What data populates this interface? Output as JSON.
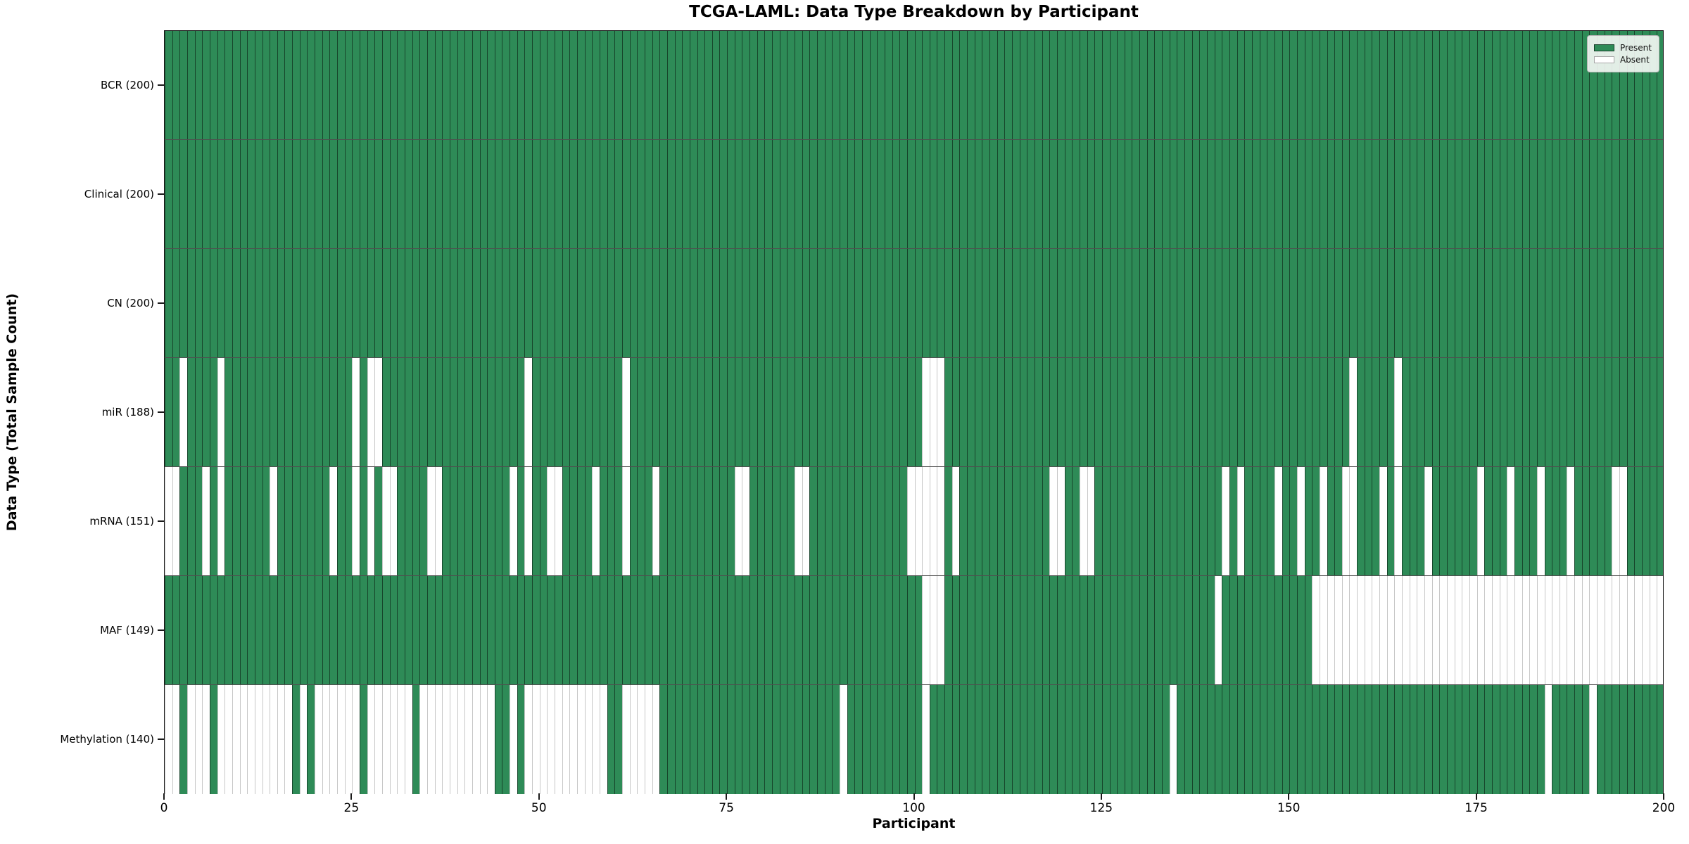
{
  "figure": {
    "title": "TCGA-LAML: Data Type Breakdown by Participant",
    "xlabel": "Participant",
    "ylabel": "Data Type (Total Sample Count)"
  },
  "legend": {
    "present_label": "Present",
    "absent_label": "Absent"
  },
  "colors": {
    "present": "#2e8b57",
    "absent": "#ffffff",
    "frame": "#1a1a1a"
  },
  "chart_data": {
    "type": "heatmap",
    "title": "TCGA-LAML: Data Type Breakdown by Participant",
    "xlabel": "Participant",
    "ylabel": "Data Type (Total Sample Count)",
    "legend_position": "upper right",
    "legend_entries": [
      "Present",
      "Absent"
    ],
    "x_range": [
      0,
      200
    ],
    "n_columns": 200,
    "x_ticks": [
      0,
      25,
      50,
      75,
      100,
      125,
      150,
      175,
      200
    ],
    "categories": [
      "BCR",
      "Clinical",
      "CN",
      "miR",
      "mRNA",
      "MAF",
      "Methylation"
    ],
    "rows": [
      {
        "name": "BCR",
        "label": "BCR (200)",
        "present_count": 200,
        "absent_columns": []
      },
      {
        "name": "Clinical",
        "label": "Clinical (200)",
        "present_count": 200,
        "absent_columns": []
      },
      {
        "name": "CN",
        "label": "CN (200)",
        "present_count": 200,
        "absent_columns": []
      },
      {
        "name": "miR",
        "label": "miR (188)",
        "present_count": 188,
        "absent_columns": [
          2,
          7,
          25,
          27,
          28,
          48,
          61,
          101,
          102,
          103,
          158,
          164
        ]
      },
      {
        "name": "mRNA",
        "label": "mRNA (151)",
        "present_count": 151,
        "absent_columns": [
          0,
          1,
          5,
          7,
          14,
          22,
          25,
          27,
          29,
          30,
          35,
          36,
          46,
          48,
          51,
          52,
          57,
          61,
          65,
          76,
          77,
          84,
          85,
          99,
          100,
          101,
          102,
          103,
          105,
          118,
          119,
          122,
          123,
          141,
          143,
          148,
          151,
          154,
          157,
          158,
          162,
          164,
          168,
          175,
          179,
          183,
          187,
          193,
          194
        ]
      },
      {
        "name": "MAF",
        "label": "MAF (149)",
        "present_count": 149,
        "absent_columns": [
          101,
          102,
          103,
          140,
          153,
          154,
          155,
          156,
          157,
          158,
          159,
          160,
          161,
          162,
          163,
          164,
          165,
          166,
          167,
          168,
          169,
          170,
          171,
          172,
          173,
          174,
          175,
          176,
          177,
          178,
          179,
          180,
          181,
          182,
          183,
          184,
          185,
          186,
          187,
          188,
          189,
          190,
          191,
          192,
          193,
          194,
          195,
          196,
          197,
          198,
          199
        ]
      },
      {
        "name": "Methylation",
        "label": "Methylation (140)",
        "present_count": 140,
        "absent_columns": [
          0,
          1,
          3,
          4,
          5,
          7,
          8,
          9,
          10,
          11,
          12,
          13,
          14,
          15,
          16,
          18,
          20,
          21,
          22,
          23,
          24,
          25,
          27,
          28,
          29,
          30,
          31,
          32,
          34,
          35,
          36,
          37,
          38,
          39,
          40,
          41,
          42,
          43,
          46,
          48,
          49,
          50,
          51,
          52,
          53,
          54,
          55,
          56,
          57,
          58,
          61,
          62,
          63,
          64,
          65,
          90,
          101,
          134,
          184,
          190
        ]
      }
    ]
  }
}
